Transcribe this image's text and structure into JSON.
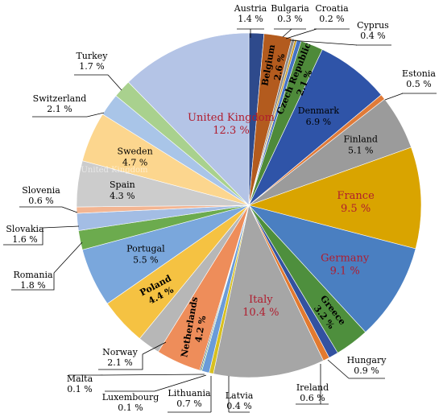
{
  "chart_data": {
    "type": "pie",
    "title": "",
    "legend": "none",
    "slices": [
      {
        "name": "Austria",
        "label": "Austria",
        "pct_label": "1.4 %",
        "value": 1.4,
        "color": "#2e4a8c"
      },
      {
        "name": "Belgium",
        "label": "Belgium",
        "pct_label": "2.6 %",
        "value": 2.6,
        "color": "#b35b1e"
      },
      {
        "name": "Bulgaria",
        "label": "Bulgaria",
        "pct_label": "0.3 %",
        "value": 0.3,
        "color": "#8c8c8c"
      },
      {
        "name": "Croatia",
        "label": "Croatia",
        "pct_label": "0.2 %",
        "value": 0.2,
        "color": "#c99a1f"
      },
      {
        "name": "Cyprus",
        "label": "Cyprus",
        "pct_label": "0.4 %",
        "value": 0.4,
        "color": "#4472c4"
      },
      {
        "name": "Czech Republic",
        "label": "Czech Republic",
        "pct_label": "2.1 %",
        "value": 2.1,
        "color": "#4e8a3a"
      },
      {
        "name": "Denmark",
        "label": "Denmark",
        "pct_label": "6.9 %",
        "value": 6.9,
        "color": "#2f54a8"
      },
      {
        "name": "Estonia",
        "label": "Estonia",
        "pct_label": "0.5 %",
        "value": 0.5,
        "color": "#e07b39"
      },
      {
        "name": "Finland",
        "label": "Finland",
        "pct_label": "5.1 %",
        "value": 5.1,
        "color": "#9b9b9b"
      },
      {
        "name": "France",
        "label": "France",
        "pct_label": "9.5 %",
        "value": 9.5,
        "color": "#d9a400"
      },
      {
        "name": "Germany",
        "label": "Germany",
        "pct_label": "9.1 %",
        "value": 9.1,
        "color": "#4a7fc1"
      },
      {
        "name": "Greece",
        "label": "Greece",
        "pct_label": "3.2 %",
        "value": 3.2,
        "color": "#4e8f3d"
      },
      {
        "name": "Hungary",
        "label": "Hungary",
        "pct_label": "0.9 %",
        "value": 0.9,
        "color": "#3352a0"
      },
      {
        "name": "Ireland",
        "label": "Ireland",
        "pct_label": "0.6 %",
        "value": 0.6,
        "color": "#e27a30"
      },
      {
        "name": "Italy",
        "label": "Italy",
        "pct_label": "10.4 %",
        "value": 10.4,
        "color": "#a6a6a6"
      },
      {
        "name": "Latvia",
        "label": "Latvia",
        "pct_label": "0.4 %",
        "value": 0.4,
        "color": "#d8c020"
      },
      {
        "name": "Lithuania",
        "label": "Lithuania",
        "pct_label": "0.7 %",
        "value": 0.7,
        "color": "#6a9bd8"
      },
      {
        "name": "Luxembourg",
        "label": "Luxembourg",
        "pct_label": "0.1 %",
        "value": 0.1,
        "color": "#74b35a"
      },
      {
        "name": "Malta",
        "label": "Malta",
        "pct_label": "0.1 %",
        "value": 0.1,
        "color": "#264478"
      },
      {
        "name": "Netherlands",
        "label": "Netherlands",
        "pct_label": "4.2 %",
        "value": 4.2,
        "color": "#ee8d5a"
      },
      {
        "name": "Norway",
        "label": "Norway",
        "pct_label": "2.1 %",
        "value": 2.1,
        "color": "#b7b7b7"
      },
      {
        "name": "Poland",
        "label": "Poland",
        "pct_label": "4.4 %",
        "value": 4.4,
        "color": "#f5c242"
      },
      {
        "name": "Portugal",
        "label": "Portugal",
        "pct_label": "5.5 %",
        "value": 5.5,
        "color": "#7aa7dc"
      },
      {
        "name": "Romania",
        "label": "Romania",
        "pct_label": "1.8 %",
        "value": 1.8,
        "color": "#6cab4e"
      },
      {
        "name": "Slovakia",
        "label": "Slovakia",
        "pct_label": "1.6 %",
        "value": 1.6,
        "color": "#a3bde4"
      },
      {
        "name": "Slovenia",
        "label": "Slovenia",
        "pct_label": "0.6 %",
        "value": 0.6,
        "color": "#f3b592"
      },
      {
        "name": "Spain",
        "label": "Spain",
        "pct_label": "4.3 %",
        "value": 4.3,
        "color": "#cccccc"
      },
      {
        "name": "Sweden",
        "label": "Sweden",
        "pct_label": "4.7 %",
        "value": 4.7,
        "color": "#fcd68e"
      },
      {
        "name": "Switzerland",
        "label": "Switzerland",
        "pct_label": "2.1 %",
        "value": 2.1,
        "color": "#a9c5e8"
      },
      {
        "name": "Turkey",
        "label": "Turkey",
        "pct_label": "1.7 %",
        "value": 1.7,
        "color": "#a9d18e"
      },
      {
        "name": "United Kingdom",
        "label": "United Kingdom",
        "pct_label": "12.3 %",
        "value": 12.3,
        "color": "#b4c4e6"
      }
    ],
    "watermark_text": "United Kingdom"
  },
  "colors": {
    "highlight_text": "#b01c2e",
    "label_text": "#000000"
  }
}
